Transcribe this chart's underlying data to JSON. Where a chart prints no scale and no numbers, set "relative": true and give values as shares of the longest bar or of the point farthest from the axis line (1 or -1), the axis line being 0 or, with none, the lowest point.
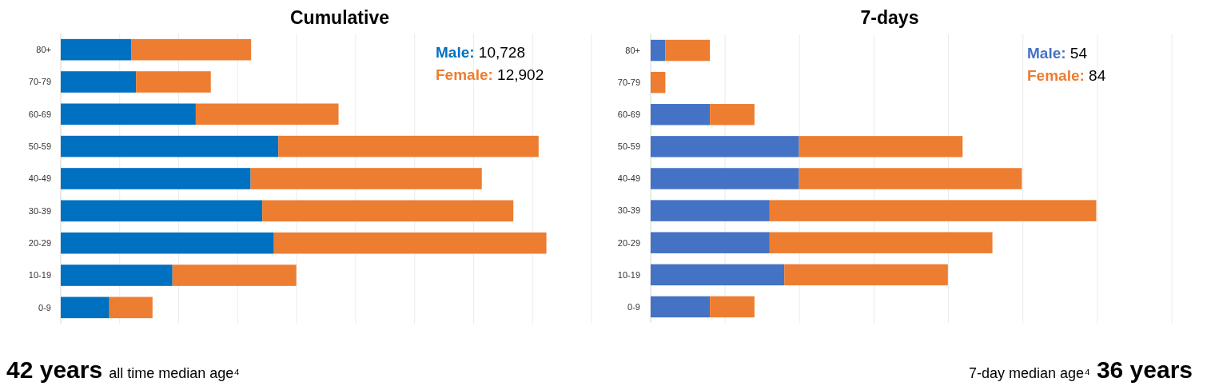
{
  "chart_data": [
    {
      "type": "bar",
      "title": "Cumulative",
      "orientation": "horizontal",
      "stacked": true,
      "relative": true,
      "grid": "x",
      "legend": "top right",
      "categories": [
        "80+",
        "70-79",
        "60-69",
        "50-59",
        "40-49",
        "30-39",
        "20-29",
        "10-19",
        "0-9"
      ],
      "series": [
        {
          "name": "Male: 10,728",
          "color": "#0070c0",
          "values": [
            0.145,
            0.155,
            0.278,
            0.448,
            0.391,
            0.415,
            0.439,
            0.23,
            0.1
          ]
        },
        {
          "name": "Female: 12,902",
          "color": "#ed7d31",
          "values": [
            0.247,
            0.154,
            0.294,
            0.536,
            0.476,
            0.517,
            0.561,
            0.255,
            0.089
          ]
        }
      ],
      "annotations": [
        "42 years",
        "all time median age⁴"
      ]
    },
    {
      "type": "bar",
      "title": "7-days",
      "orientation": "horizontal",
      "stacked": true,
      "relative": true,
      "grid": "x",
      "legend": "top right",
      "categories": [
        "80+",
        "70-79",
        "60-69",
        "50-59",
        "40-49",
        "30-39",
        "20-29",
        "10-19",
        "0-9"
      ],
      "series": [
        {
          "name": "Male: 54",
          "color": "#4472c4",
          "values": [
            0.033,
            0,
            0.133,
            0.333,
            0.333,
            0.267,
            0.267,
            0.3,
            0.133
          ]
        },
        {
          "name": "Female: 84",
          "color": "#ed7d31",
          "values": [
            0.1,
            0.033,
            0.1,
            0.367,
            0.5,
            0.733,
            0.5,
            0.367,
            0.1
          ]
        }
      ],
      "annotations": [
        "7-day median age⁴",
        "36 years"
      ]
    }
  ]
}
